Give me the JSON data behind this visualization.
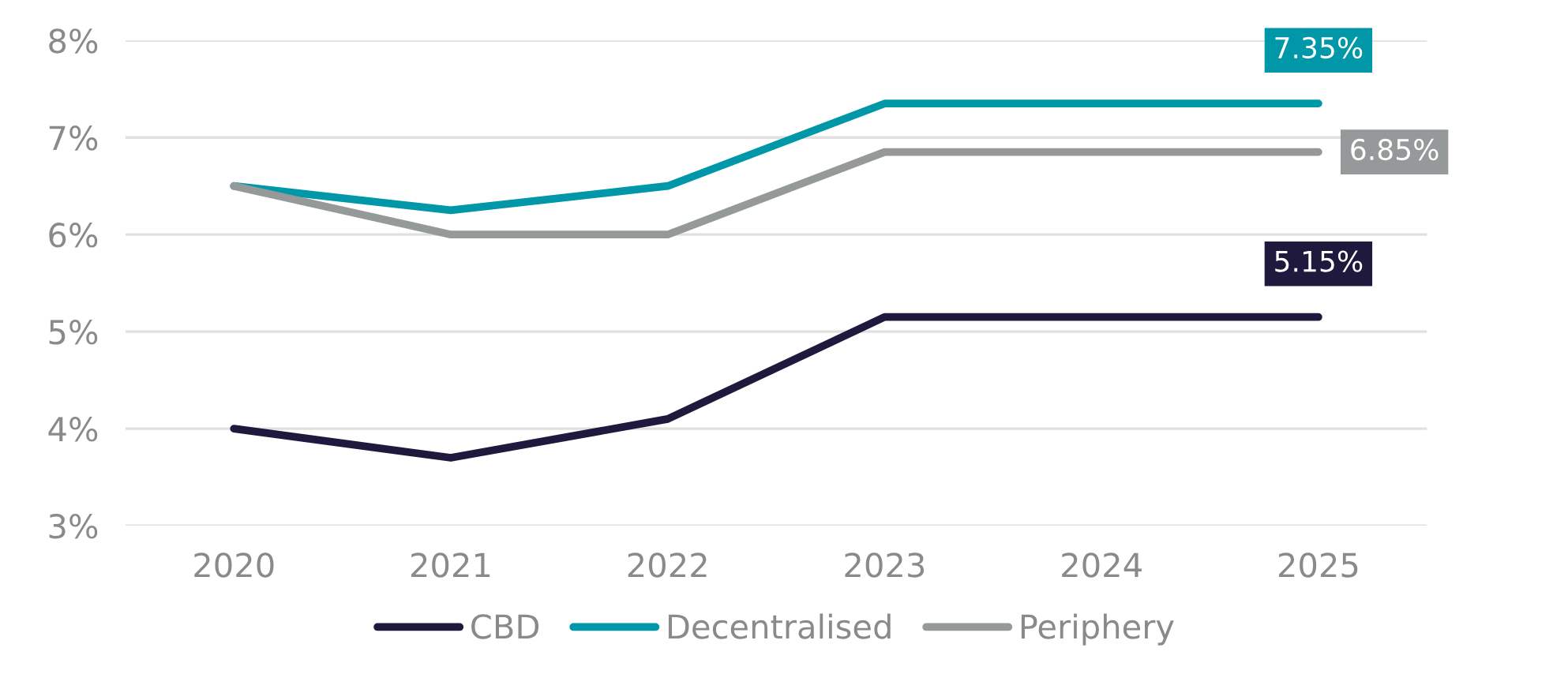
{
  "chart_data": {
    "type": "line",
    "categories": [
      "2020",
      "2021",
      "2022",
      "2023",
      "2024",
      "2025"
    ],
    "series": [
      {
        "name": "CBD",
        "color": "#1f1a3d",
        "values": [
          4.0,
          3.7,
          4.1,
          5.15,
          5.15,
          5.15
        ],
        "value_labels": [
          null,
          null,
          null,
          null,
          null,
          "5.15%"
        ]
      },
      {
        "name": "Decentralised",
        "color": "#0097a9",
        "values": [
          6.5,
          6.25,
          6.5,
          7.35,
          7.35,
          7.35
        ],
        "value_labels": [
          null,
          null,
          null,
          null,
          null,
          "7.35%"
        ]
      },
      {
        "name": "Periphery",
        "color": "#959999",
        "values": [
          6.5,
          6.0,
          6.0,
          6.85,
          6.85,
          6.85
        ],
        "value_labels": [
          null,
          null,
          null,
          null,
          null,
          "6.85%"
        ]
      }
    ],
    "ylim": [
      3,
      8
    ],
    "yticks": [
      {
        "value": 3,
        "label": "3%"
      },
      {
        "value": 4,
        "label": "4%"
      },
      {
        "value": 5,
        "label": "5%"
      },
      {
        "value": 6,
        "label": "6%"
      },
      {
        "value": 7,
        "label": "7%"
      },
      {
        "value": 8,
        "label": "8%"
      }
    ],
    "grid": "y",
    "legend": "bottom",
    "marker": "none",
    "line_style": "solid"
  }
}
